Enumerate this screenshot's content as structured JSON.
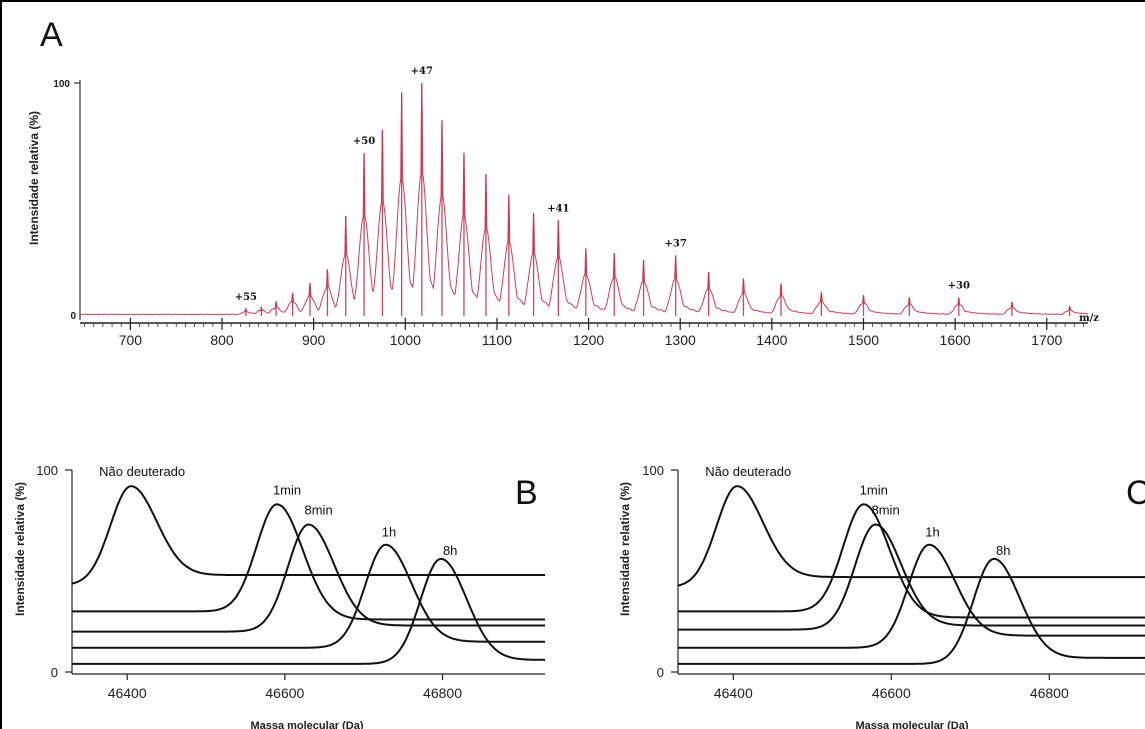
{
  "chart_data": [
    {
      "panel": "A",
      "type": "line",
      "series_color": "#d23c55",
      "ylabel": "Intensidade relativa (%)",
      "xlabel": "m/z",
      "xlim": [
        645,
        1745
      ],
      "ylim": [
        0,
        100
      ],
      "x_ticks": [
        700,
        800,
        900,
        1000,
        1100,
        1200,
        1300,
        1400,
        1500,
        1600,
        1700
      ],
      "y_ticks": [
        0,
        100
      ],
      "grid": false,
      "peaks": [
        {
          "x": 826,
          "y": 3,
          "label": "+55"
        },
        {
          "x": 843,
          "y": 4
        },
        {
          "x": 859,
          "y": 6
        },
        {
          "x": 877,
          "y": 10
        },
        {
          "x": 896,
          "y": 14
        },
        {
          "x": 915,
          "y": 20
        },
        {
          "x": 935,
          "y": 43
        },
        {
          "x": 955,
          "y": 70,
          "label": "+50"
        },
        {
          "x": 975,
          "y": 80
        },
        {
          "x": 996,
          "y": 96
        },
        {
          "x": 1018,
          "y": 100,
          "label": "+47"
        },
        {
          "x": 1040,
          "y": 84
        },
        {
          "x": 1064,
          "y": 70
        },
        {
          "x": 1088,
          "y": 61
        },
        {
          "x": 1113,
          "y": 52
        },
        {
          "x": 1140,
          "y": 44
        },
        {
          "x": 1167,
          "y": 41,
          "label": "+41"
        },
        {
          "x": 1197,
          "y": 29
        },
        {
          "x": 1228,
          "y": 27
        },
        {
          "x": 1260,
          "y": 24
        },
        {
          "x": 1295,
          "y": 26,
          "label": "+37"
        },
        {
          "x": 1331,
          "y": 19
        },
        {
          "x": 1369,
          "y": 16
        },
        {
          "x": 1410,
          "y": 14
        },
        {
          "x": 1454,
          "y": 10
        },
        {
          "x": 1500,
          "y": 9
        },
        {
          "x": 1550,
          "y": 8
        },
        {
          "x": 1604,
          "y": 8,
          "label": "+30"
        },
        {
          "x": 1662,
          "y": 6
        },
        {
          "x": 1725,
          "y": 4
        }
      ]
    },
    {
      "panel": "B",
      "type": "line",
      "ylabel": "Intensidade relativa (%)",
      "xlabel": "Massa molecular (Da)",
      "xlim": [
        46330,
        46930
      ],
      "ylim": [
        0,
        100
      ],
      "x_ticks": [
        46400,
        46600,
        46800
      ],
      "y_ticks": [
        0,
        100
      ],
      "series": [
        {
          "name": "Não deuterado",
          "center": 46405,
          "peak": 92,
          "base_left": 43,
          "base_right": 48
        },
        {
          "name": "1min",
          "center": 46590,
          "peak": 83,
          "base_left": 30,
          "base_right": 26
        },
        {
          "name": "8min",
          "center": 46630,
          "peak": 73,
          "base_left": 20,
          "base_right": 23
        },
        {
          "name": "1h",
          "center": 46728,
          "peak": 63,
          "base_left": 12,
          "base_right": 15
        },
        {
          "name": "8h",
          "center": 46798,
          "peak": 56,
          "base_left": 4,
          "base_right": 6
        }
      ]
    },
    {
      "panel": "C",
      "type": "line",
      "ylabel": "Intensidade relativa (%)",
      "xlabel": "Massa molecular (Da)",
      "xlim": [
        46330,
        46930
      ],
      "ylim": [
        0,
        100
      ],
      "x_ticks": [
        46400,
        46600,
        46800
      ],
      "y_ticks": [
        0,
        100
      ],
      "series": [
        {
          "name": "Não deuterado",
          "center": 46405,
          "peak": 92,
          "base_left": 42,
          "base_right": 47
        },
        {
          "name": "1min",
          "center": 46565,
          "peak": 83,
          "base_left": 30,
          "base_right": 27
        },
        {
          "name": "8min",
          "center": 46580,
          "peak": 73,
          "base_left": 21,
          "base_right": 23
        },
        {
          "name": "1h",
          "center": 46648,
          "peak": 63,
          "base_left": 12,
          "base_right": 18
        },
        {
          "name": "8h",
          "center": 46730,
          "peak": 56,
          "base_left": 4,
          "base_right": 7
        }
      ]
    }
  ],
  "panel_letters": {
    "a": "A",
    "b": "B",
    "c": "C"
  },
  "y_tick_labels": {
    "a_top": "100",
    "a_bottom": "0",
    "b_top": "100",
    "b_bottom": "0",
    "c_top": "100",
    "c_bottom": "0"
  },
  "axis_titles": {
    "a_y": "Intensidade relativa (%)",
    "a_x": "m/z",
    "b_y": "Intensidade relativa (%)",
    "b_x": "Massa molecular (Da)",
    "c_y": "Intensidade relativa (%)",
    "c_x": "Massa molecular (Da)"
  }
}
